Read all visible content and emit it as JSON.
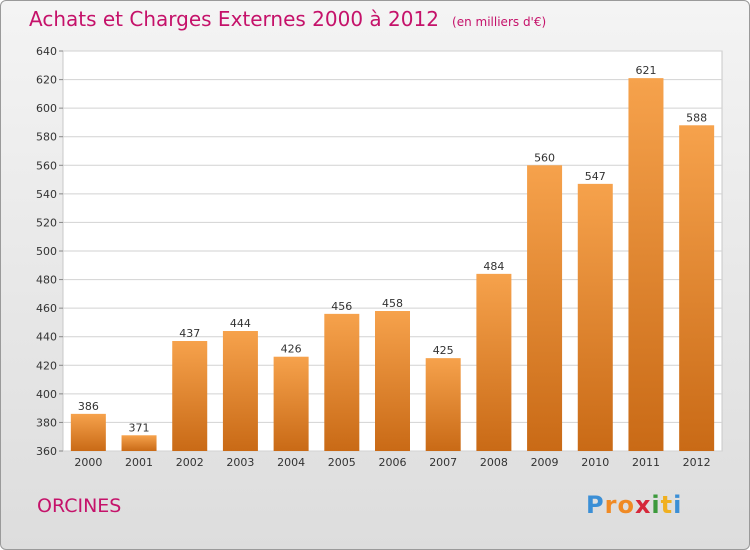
{
  "title": "Achats et Charges Externes 2000 à 2012",
  "unit": "(en milliers d'€)",
  "town": "ORCINES",
  "logo": {
    "letters": [
      "P",
      "r",
      "o",
      "x",
      "i",
      "t",
      "i"
    ],
    "colors": [
      "#3b8fd6",
      "#f08a24",
      "#f08a24",
      "#d6283a",
      "#3c9a3c",
      "#f0b020",
      "#3b8fd6"
    ]
  },
  "colors": {
    "title": "#c5126a",
    "bar_top": "#f6a24c",
    "bar_bottom": "#c96a16",
    "grid": "#d2d2d2"
  },
  "chart_data": {
    "type": "bar",
    "categories": [
      "2000",
      "2001",
      "2002",
      "2003",
      "2004",
      "2005",
      "2006",
      "2007",
      "2008",
      "2009",
      "2010",
      "2011",
      "2012"
    ],
    "values": [
      386,
      371,
      437,
      444,
      426,
      456,
      458,
      425,
      484,
      560,
      547,
      621,
      588
    ],
    "ylim": [
      360,
      640
    ],
    "yticks": [
      360,
      380,
      400,
      420,
      440,
      460,
      480,
      500,
      520,
      540,
      560,
      580,
      600,
      620,
      640
    ],
    "grid": true
  }
}
